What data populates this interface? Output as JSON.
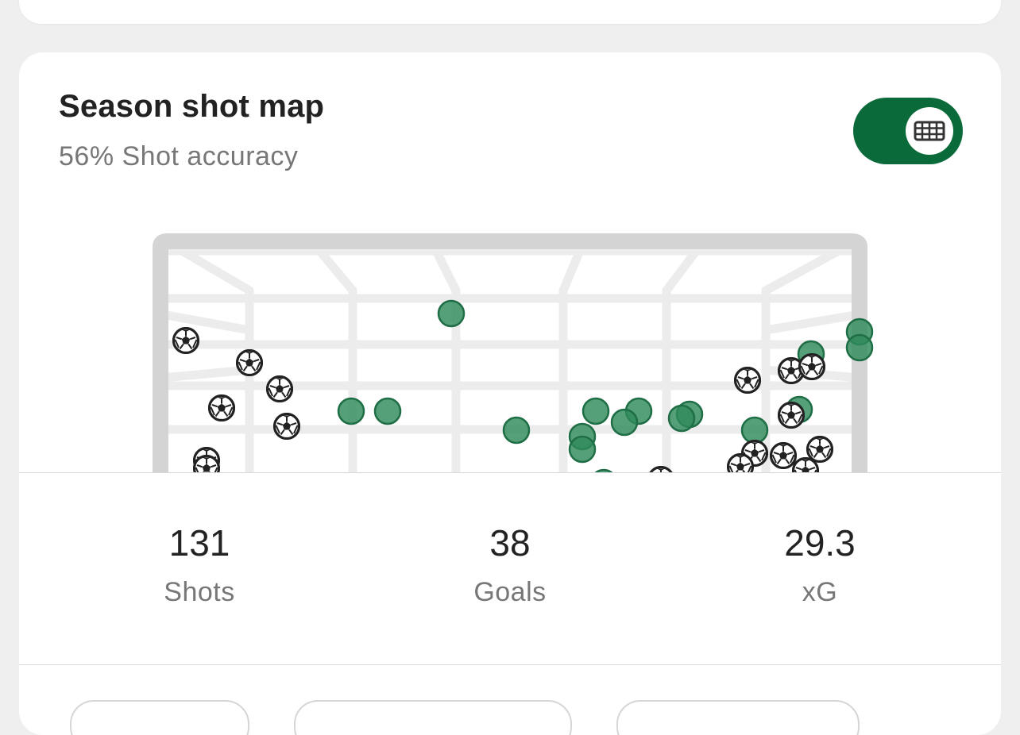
{
  "card": {
    "title": "Season shot map",
    "subtitle": "56% Shot accuracy"
  },
  "toggle": {
    "icon": "goal-net-icon",
    "state": "on",
    "accent_color": "#0b6a3a"
  },
  "legend_colors": {
    "shot_on_target": "#2f8a5c",
    "goal_ball": "#222222"
  },
  "stats": [
    {
      "value": "131",
      "label": "Shots"
    },
    {
      "value": "38",
      "label": "Goals"
    },
    {
      "value": "29.3",
      "label": "xG"
    }
  ]
}
